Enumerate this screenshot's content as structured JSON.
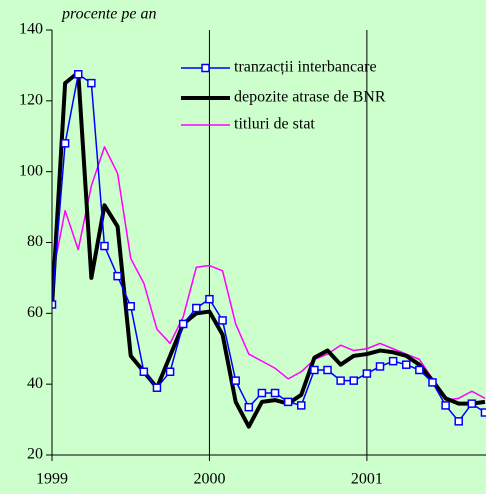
{
  "chart_data": {
    "type": "line",
    "y_label": "procente pe an",
    "categories": [
      "1999",
      null,
      null,
      null,
      null,
      null,
      null,
      null,
      null,
      null,
      null,
      null,
      "2000",
      null,
      null,
      null,
      null,
      null,
      null,
      null,
      null,
      null,
      null,
      null,
      "2001",
      null,
      null,
      null,
      null,
      null,
      null,
      null,
      null,
      null
    ],
    "ylim": [
      20,
      140
    ],
    "yticks": [
      20,
      40,
      60,
      80,
      100,
      120,
      140
    ],
    "grid": "x",
    "legend": "upper right",
    "series": [
      {
        "name": "tranzacții interbancare",
        "color": "#0000ff",
        "marker": "square",
        "values": [
          62.5,
          108,
          127.5,
          125,
          79,
          70.5,
          62,
          43.5,
          39,
          43.5,
          57,
          61.5,
          64,
          58,
          41,
          33.5,
          37.5,
          37.5,
          35,
          34,
          44,
          44,
          41,
          41,
          43,
          45,
          46.5,
          45.5,
          44,
          40.5,
          34,
          29.5,
          34.5,
          32
        ]
      },
      {
        "name": "depozite atrase de BNR",
        "color": "#000000",
        "values": [
          62,
          125,
          128,
          70,
          90.5,
          84.5,
          48,
          43.5,
          39,
          48,
          57,
          60,
          60.5,
          54,
          35,
          28,
          35,
          35.5,
          34.5,
          37,
          47.5,
          49.5,
          45.5,
          48,
          48.5,
          49.5,
          49,
          48,
          45.5,
          41,
          36,
          34.5,
          34.5,
          35
        ]
      },
      {
        "name": "titluri de stat",
        "color": "#ff00ff",
        "values": [
          70,
          89,
          78,
          96,
          107,
          99.5,
          75.5,
          68.5,
          55.5,
          51.5,
          59,
          73,
          73.5,
          72,
          57,
          48.5,
          46.5,
          44.5,
          41.5,
          43.5,
          47,
          48.5,
          51,
          49.5,
          50,
          51.5,
          50,
          48.5,
          47,
          41.5,
          35.5,
          36,
          38,
          36
        ]
      }
    ]
  }
}
